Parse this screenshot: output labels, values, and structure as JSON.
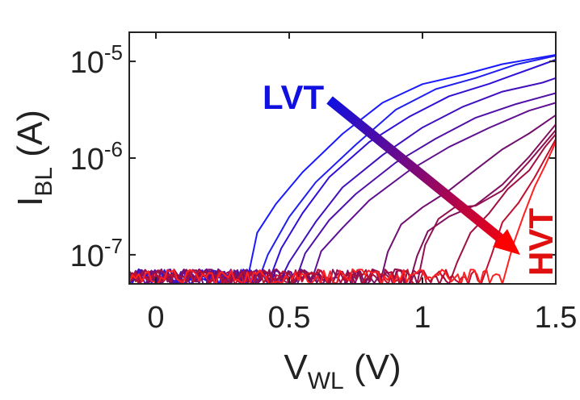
{
  "chart_data": {
    "type": "line",
    "xlabel": {
      "main": "V",
      "sub": "WL",
      "unit": " (V)"
    },
    "ylabel": {
      "main": "I",
      "sub": "BL",
      "unit": " (A)"
    },
    "xlim": [
      -0.1,
      1.5
    ],
    "ylim": [
      5e-08,
      2e-05
    ],
    "yscale": "log",
    "x_ticks": [
      {
        "value": 0,
        "label": "0"
      },
      {
        "value": 0.5,
        "label": "0.5"
      },
      {
        "value": 1,
        "label": "1"
      },
      {
        "value": 1.5,
        "label": "1.5"
      }
    ],
    "y_ticks": [
      {
        "value": 1e-07,
        "base": "10",
        "exp": "-7"
      },
      {
        "value": 1e-06,
        "base": "10",
        "exp": "-6"
      },
      {
        "value": 1e-05,
        "base": "10",
        "exp": "-5"
      }
    ],
    "grid": false,
    "annotations": {
      "lvt": {
        "text": "LVT",
        "color": "#1010e0"
      },
      "hvt": {
        "text": "HVT",
        "color": "#e01010"
      },
      "arrow": {
        "from": [
          0.67,
          1.1e-05
        ],
        "to": [
          1.4,
          9e-08
        ],
        "color_start": "#1010e0",
        "color_end": "#ff0000"
      }
    },
    "noise_floor": 5e-08,
    "series": [
      {
        "color": "#1a1aff",
        "x": [
          0.34,
          0.38,
          0.45,
          0.55,
          0.7,
          0.85,
          1.0,
          1.15,
          1.3,
          1.5
        ],
        "y": [
          5e-08,
          1.7e-07,
          3.2e-07,
          7.5e-07,
          1.8e-06,
          3.5e-06,
          5.5e-06,
          7.5e-06,
          9.3e-06,
          1.1e-05
        ]
      },
      {
        "color": "#2020ee",
        "x": [
          0.38,
          0.42,
          0.5,
          0.6,
          0.75,
          0.9,
          1.05,
          1.2,
          1.35,
          1.5
        ],
        "y": [
          5e-08,
          1.1e-07,
          2.4e-07,
          5.5e-07,
          1.4e-06,
          3e-06,
          5e-06,
          7e-06,
          8.8e-06,
          1.05e-05
        ]
      },
      {
        "color": "#3010d8",
        "x": [
          0.42,
          0.47,
          0.55,
          0.65,
          0.8,
          0.95,
          1.1,
          1.25,
          1.4,
          1.5
        ],
        "y": [
          5e-08,
          1.2e-07,
          2.6e-07,
          6.5e-07,
          1.5e-06,
          2.8e-06,
          4.5e-06,
          6.3e-06,
          8.2e-06,
          9.6e-06
        ]
      },
      {
        "color": "#4010c0",
        "x": [
          0.46,
          0.5,
          0.6,
          0.7,
          0.85,
          1.0,
          1.15,
          1.3,
          1.45,
          1.5
        ],
        "y": [
          5e-08,
          9e-08,
          2.2e-07,
          5e-07,
          1.1e-06,
          2e-06,
          3.3e-06,
          4.8e-06,
          6.2e-06,
          6.8e-06
        ]
      },
      {
        "color": "#5010a8",
        "x": [
          0.52,
          0.56,
          0.65,
          0.75,
          0.9,
          1.05,
          1.2,
          1.35,
          1.5
        ],
        "y": [
          5e-08,
          1e-07,
          2.2e-07,
          4.5e-07,
          8.5e-07,
          1.5e-06,
          2.5e-06,
          3.8e-06,
          5e-06
        ]
      },
      {
        "color": "#601090",
        "x": [
          0.58,
          0.62,
          0.7,
          0.8,
          0.95,
          1.1,
          1.25,
          1.4,
          1.5
        ],
        "y": [
          5e-08,
          1e-07,
          1.8e-07,
          3.5e-07,
          7e-07,
          1.2e-06,
          2e-06,
          3e-06,
          4e-06
        ]
      },
      {
        "color": "#701070",
        "x": [
          0.84,
          0.87,
          0.92,
          1.0,
          1.1,
          1.2,
          1.3,
          1.4,
          1.5
        ],
        "y": [
          5e-08,
          1.1e-07,
          1.9e-07,
          3.2e-07,
          5e-07,
          7.8e-07,
          1.2e-06,
          1.8e-06,
          2.8e-06
        ]
      },
      {
        "color": "#801060",
        "x": [
          0.95,
          0.98,
          1.02,
          1.1,
          1.2,
          1.3,
          1.4,
          1.5
        ],
        "y": [
          5e-08,
          1e-07,
          1.8e-07,
          2.7e-07,
          3.5e-07,
          5.5e-07,
          9.5e-07,
          2.2e-06
        ]
      },
      {
        "color": "#901050",
        "x": [
          0.98,
          1.01,
          1.06,
          1.12,
          1.2,
          1.3,
          1.4,
          1.5
        ],
        "y": [
          5e-08,
          1.2e-07,
          2.2e-07,
          3e-07,
          3.3e-07,
          4.8e-07,
          8.5e-07,
          1.9e-06
        ]
      },
      {
        "color": "#a01040",
        "x": [
          1.1,
          1.13,
          1.18,
          1.25,
          1.32,
          1.4,
          1.46,
          1.5
        ],
        "y": [
          5e-08,
          9e-08,
          1.6e-07,
          2.8e-07,
          4.5e-07,
          8e-07,
          1.3e-06,
          1.8e-06
        ]
      },
      {
        "color": "#c01030",
        "x": [
          1.22,
          1.26,
          1.3,
          1.36,
          1.42,
          1.5
        ],
        "y": [
          5e-08,
          1e-07,
          2e-07,
          3.5e-07,
          6.5e-07,
          1.5e-06
        ]
      },
      {
        "color": "#ff2020",
        "x": [
          1.3,
          1.34,
          1.38,
          1.42,
          1.46,
          1.5
        ],
        "y": [
          5e-08,
          1.3e-07,
          2.6e-07,
          5e-07,
          9e-07,
          1.6e-06
        ]
      }
    ]
  }
}
